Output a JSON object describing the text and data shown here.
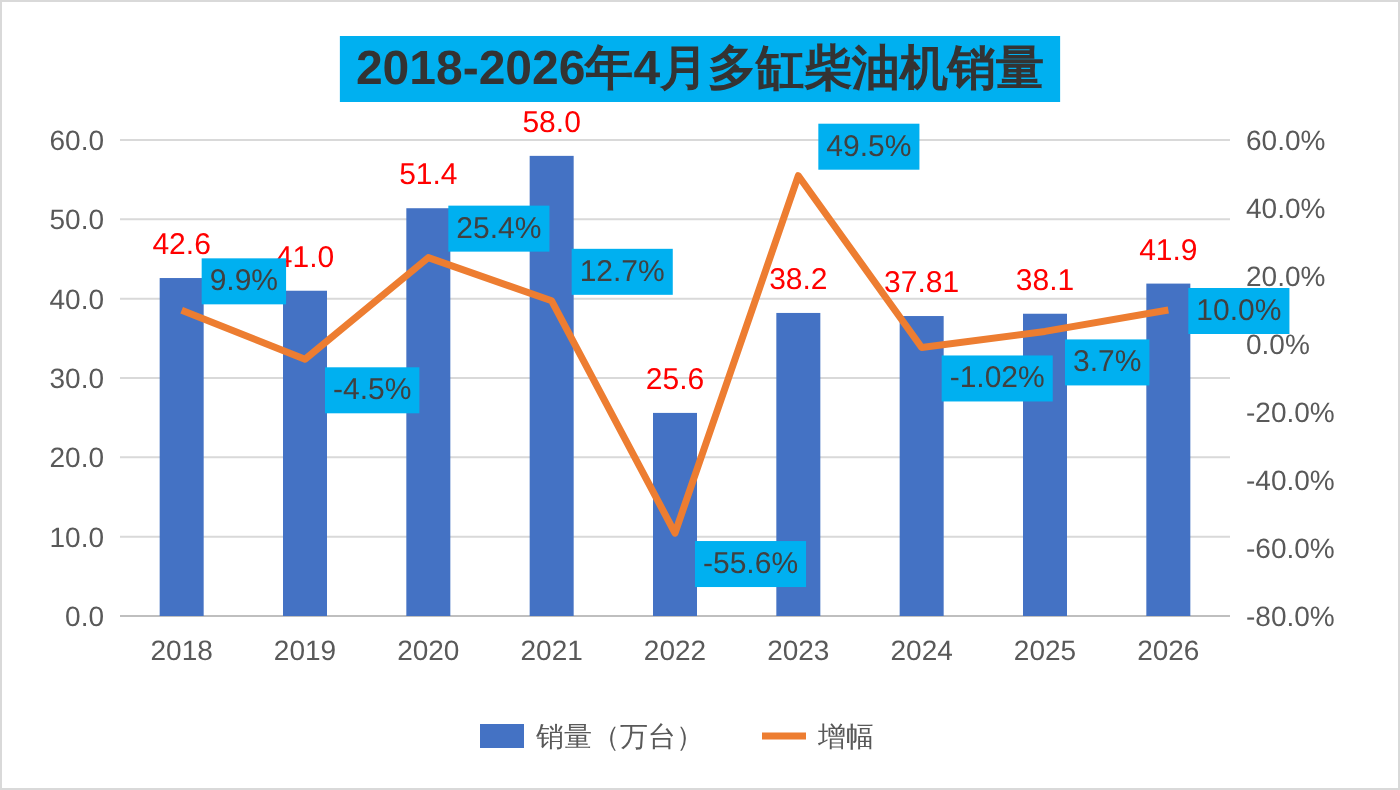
{
  "chart_data": {
    "type": "bar",
    "title": "2018-2026年4月多缸柴油机销量",
    "categories": [
      "2018",
      "2019",
      "2020",
      "2021",
      "2022",
      "2023",
      "2024",
      "2025",
      "2026"
    ],
    "series": [
      {
        "name": "销量（万台）",
        "color": "#4472c4",
        "values": [
          42.6,
          41.0,
          51.4,
          58.0,
          25.6,
          38.2,
          37.81,
          38.1,
          41.9
        ],
        "value_labels": [
          "42.6",
          "41.0",
          "51.4",
          "58.0",
          "25.6",
          "38.2",
          "37.81",
          "38.1",
          "41.9"
        ]
      },
      {
        "name": "增幅",
        "type": "line",
        "axis": "y2",
        "color": "#ed7d31",
        "values": [
          9.9,
          -4.5,
          25.4,
          12.7,
          -55.6,
          49.5,
          -1.02,
          3.7,
          10.0
        ],
        "value_labels": [
          "9.9%",
          "-4.5%",
          "25.4%",
          "12.7%",
          "-55.6%",
          "49.5%",
          "-1.02%",
          "3.7%",
          "10.0%"
        ]
      }
    ],
    "ylim": [
      0,
      60
    ],
    "yticks": [
      {
        "value": 0,
        "label": "0.0"
      },
      {
        "value": 10,
        "label": "10.0"
      },
      {
        "value": 20,
        "label": "20.0"
      },
      {
        "value": 30,
        "label": "30.0"
      },
      {
        "value": 40,
        "label": "40.0"
      },
      {
        "value": 50,
        "label": "50.0"
      },
      {
        "value": 60,
        "label": "60.0"
      }
    ],
    "y2lim": [
      -80,
      60
    ],
    "y2ticks": [
      {
        "value": -80,
        "label": "-80.0%"
      },
      {
        "value": -60,
        "label": "-60.0%"
      },
      {
        "value": -40,
        "label": "-40.0%"
      },
      {
        "value": -20,
        "label": "-20.0%"
      },
      {
        "value": 0,
        "label": "0.0%"
      },
      {
        "value": 20,
        "label": "20.0%"
      },
      {
        "value": 40,
        "label": "40.0%"
      },
      {
        "value": 60,
        "label": "60.0%"
      }
    ],
    "grid": "y",
    "legend": "bottom",
    "marker": "none",
    "line_style": "solid"
  }
}
